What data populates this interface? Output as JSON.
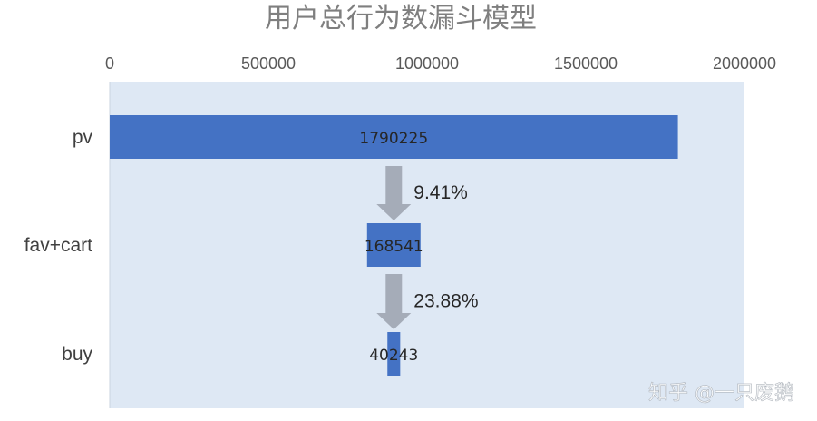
{
  "chart_data": {
    "type": "bar",
    "orientation": "horizontal",
    "subtype": "funnel",
    "title": "用户总行为数漏斗模型",
    "xlabel": "",
    "ylabel": "",
    "xlim": [
      0,
      2000000
    ],
    "xticks": [
      "0",
      "500000",
      "1000000",
      "1500000",
      "2000000"
    ],
    "x_axis_position": "top",
    "grid": false,
    "legend": "none",
    "categories": [
      "pv",
      "fav+cart",
      "buy"
    ],
    "values": [
      1790225,
      168541,
      40243
    ],
    "value_labels": [
      "1790225",
      "168541",
      "40243"
    ],
    "conversion_rates": [
      "9.41%",
      "23.88%"
    ],
    "colors": {
      "bar": "#4472c4",
      "plot_area": "#dee8f4",
      "arrow": "#a5acb8"
    }
  },
  "watermark": "知乎 @一只废鹅"
}
